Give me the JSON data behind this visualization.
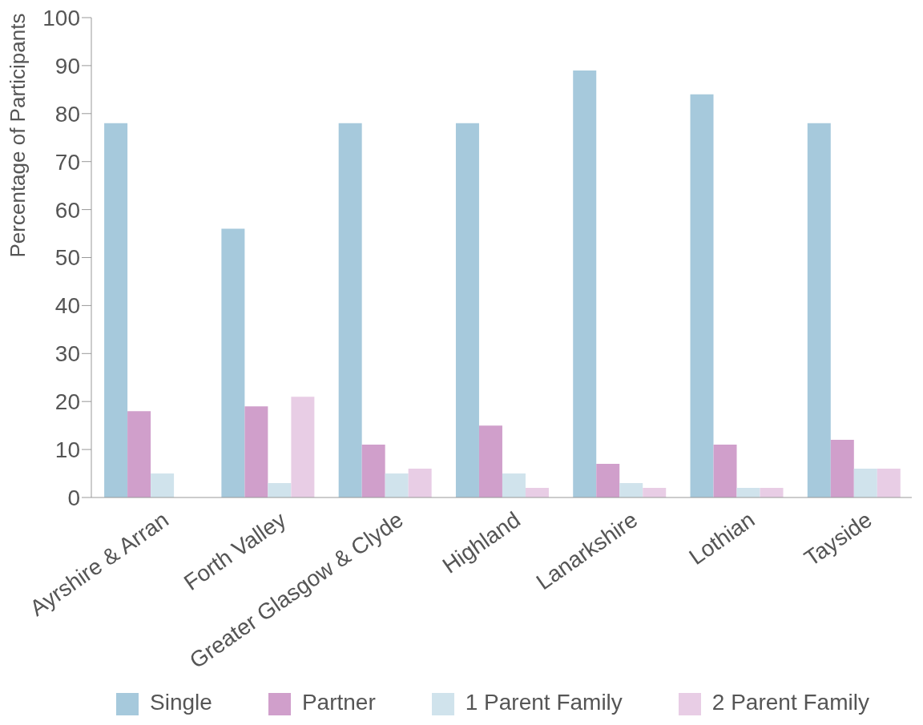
{
  "chart_data": {
    "type": "bar",
    "ylabel": "Percentage of Participants",
    "categories": [
      "Ayrshire & Arran",
      "Forth Valley",
      "Greater Glasgow & Clyde",
      "Highland",
      "Lanarkshire",
      "Lothian",
      "Tayside"
    ],
    "series": [
      {
        "name": "Single",
        "color": "#a6c9dc",
        "values": [
          78,
          56,
          78,
          78,
          89,
          84,
          78
        ]
      },
      {
        "name": "Partner",
        "color": "#d09fcb",
        "values": [
          18,
          19,
          11,
          15,
          7,
          11,
          12
        ]
      },
      {
        "name": "1 Parent Family",
        "color": "#d0e3ec",
        "values": [
          5,
          3,
          5,
          5,
          3,
          2,
          6
        ]
      },
      {
        "name": "2 Parent Family",
        "color": "#e8cde5",
        "values": [
          0,
          21,
          6,
          2,
          2,
          2,
          6
        ]
      }
    ],
    "ylim": [
      0,
      100
    ],
    "yticks": [
      0,
      10,
      20,
      30,
      40,
      50,
      60,
      70,
      80,
      90,
      100
    ],
    "grid": false,
    "legend": "bottom"
  }
}
